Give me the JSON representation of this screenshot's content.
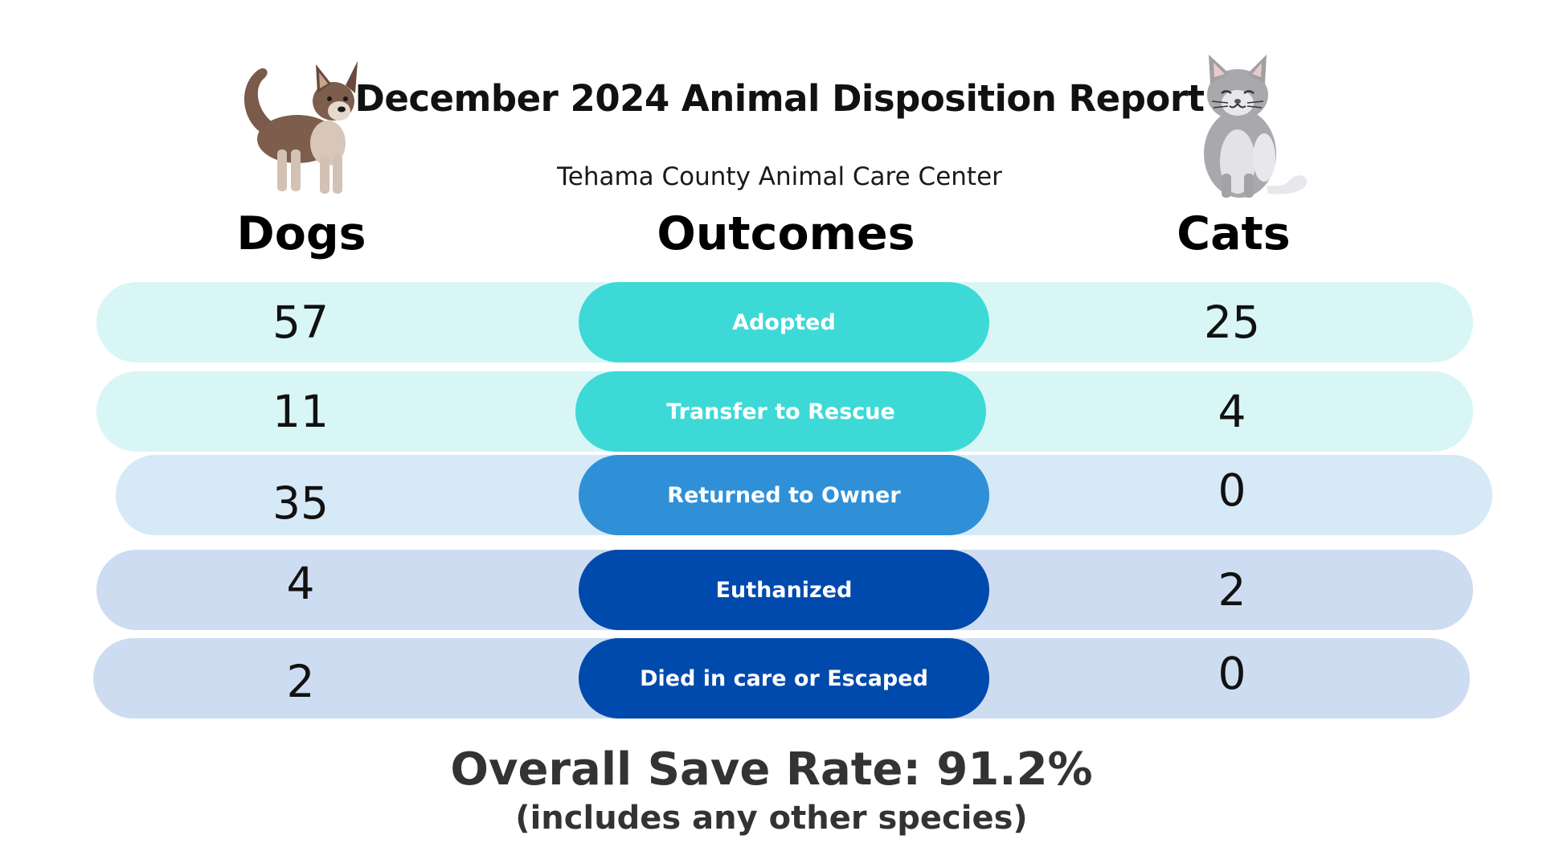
{
  "title": "December 2024 Animal Disposition Report",
  "subtitle": "Tehama County Animal Care Center",
  "columns": {
    "left": "Dogs",
    "center": "Outcomes",
    "right": "Cats"
  },
  "chart_data": {
    "type": "table",
    "title": "December 2024 Animal Disposition Report",
    "subtitle": "Tehama County Animal Care Center",
    "columns": [
      "Dogs",
      "Outcomes",
      "Cats"
    ],
    "rows": [
      {
        "outcome": "Adopted",
        "dogs": "57",
        "cats": "25",
        "pill_color": "#3dd9d6",
        "row_color": "#d8f6f5"
      },
      {
        "outcome": "Transfer to Rescue",
        "dogs": "11",
        "cats": "4",
        "pill_color": "#3dd9d6",
        "row_color": "#d8f6f5"
      },
      {
        "outcome": "Returned to Owner",
        "dogs": "35",
        "cats": "0",
        "pill_color": "#2f90d8",
        "row_color": "#d6e9f6"
      },
      {
        "outcome": "Euthanized",
        "dogs": "4",
        "cats": "2",
        "pill_color": "#004aad",
        "row_color": "#cddcf0"
      },
      {
        "outcome": "Died in care or Escaped",
        "dogs": "2",
        "cats": "0",
        "pill_color": "#004aad",
        "row_color": "#cddcf0"
      }
    ]
  },
  "footer": {
    "save_rate": "Overall Save Rate: 91.2%",
    "note": "(includes any other species)"
  },
  "illustrations": {
    "left": "dog-illustration",
    "right": "cat-illustration"
  }
}
